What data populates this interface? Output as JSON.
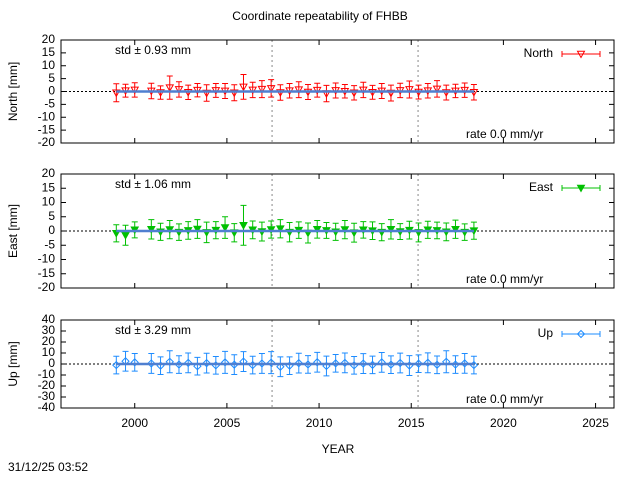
{
  "title": "Coordinate repeatability of FHBB",
  "timestamp": "31/12/25 03:52",
  "chart_data": [
    {
      "type": "errorbar",
      "ylabel": "North [mm]",
      "xlim": [
        1996,
        2026
      ],
      "xticks": [
        2000,
        2005,
        2010,
        2015,
        2020,
        2025
      ],
      "ylim": [
        -20,
        20
      ],
      "yticks": [
        -20,
        -15,
        -10,
        -5,
        0,
        5,
        10,
        15,
        20
      ],
      "vlines": [
        2007.45,
        2015.37
      ],
      "zero_line": true,
      "std_label": "std ± 0.93 mm",
      "rate_label": "rate  0.0 mm/yr",
      "x": [
        1999.0,
        1999.5,
        2000.0,
        2000.9,
        2001.4,
        2001.9,
        2002.4,
        2002.9,
        2003.4,
        2003.9,
        2004.4,
        2004.9,
        2005.4,
        2005.9,
        2006.4,
        2006.9,
        2007.4,
        2007.9,
        2008.4,
        2008.9,
        2009.4,
        2009.9,
        2010.4,
        2010.9,
        2011.4,
        2011.9,
        2012.4,
        2012.9,
        2013.4,
        2013.9,
        2014.4,
        2014.9,
        2015.4,
        2015.9,
        2016.4,
        2016.9,
        2017.4,
        2017.9,
        2018.4
      ],
      "series": [
        {
          "name": "North",
          "color": "#ff0000",
          "marker": "triangle-down-open",
          "values": [
            -0.5,
            0.3,
            0.6,
            0.2,
            -0.4,
            1.5,
            0.8,
            -0.3,
            0.5,
            -0.6,
            0.4,
            0.2,
            -0.5,
            1.8,
            0.6,
            0.9,
            1.2,
            -0.4,
            0.3,
            0.7,
            -0.2,
            0.5,
            -0.8,
            0.4,
            0.1,
            -0.5,
            0.6,
            -0.3,
            0.2,
            -0.6,
            0.4,
            0.8,
            -0.2,
            0.3,
            1.0,
            -0.4,
            0.2,
            0.5,
            -0.3
          ],
          "errors": [
            3.5,
            2.5,
            2.8,
            3.0,
            2.6,
            4.5,
            3.0,
            2.8,
            2.6,
            3.2,
            2.7,
            2.9,
            3.1,
            4.8,
            3.0,
            3.3,
            3.4,
            3.0,
            2.8,
            3.1,
            2.9,
            2.7,
            3.2,
            2.9,
            2.6,
            2.8,
            3.0,
            2.7,
            2.9,
            3.1,
            2.8,
            3.3,
            2.7,
            2.8,
            3.2,
            2.9,
            2.6,
            2.8,
            3.0
          ]
        }
      ]
    },
    {
      "type": "errorbar",
      "ylabel": "East [mm]",
      "xlim": [
        1996,
        2026
      ],
      "xticks": [
        2000,
        2005,
        2010,
        2015,
        2020,
        2025
      ],
      "ylim": [
        -20,
        20
      ],
      "yticks": [
        -20,
        -15,
        -10,
        -5,
        0,
        5,
        10,
        15,
        20
      ],
      "vlines": [
        2007.45,
        2015.37
      ],
      "zero_line": true,
      "std_label": "std ± 1.06 mm",
      "rate_label": "rate  0.0 mm/yr",
      "x": [
        1999.0,
        1999.5,
        2000.0,
        2000.9,
        2001.4,
        2001.9,
        2002.4,
        2002.9,
        2003.4,
        2003.9,
        2004.4,
        2004.9,
        2005.4,
        2005.9,
        2006.4,
        2006.9,
        2007.4,
        2007.9,
        2008.4,
        2008.9,
        2009.4,
        2009.9,
        2010.4,
        2010.9,
        2011.4,
        2011.9,
        2012.4,
        2012.9,
        2013.4,
        2013.9,
        2014.4,
        2014.9,
        2015.4,
        2015.9,
        2016.4,
        2016.9,
        2017.4,
        2017.9,
        2018.4
      ],
      "series": [
        {
          "name": "East",
          "color": "#00c000",
          "marker": "triangle-down-filled",
          "values": [
            -0.8,
            -1.5,
            0.4,
            0.6,
            -0.3,
            0.5,
            -0.4,
            0.2,
            0.7,
            -0.5,
            0.3,
            1.2,
            -0.6,
            2.0,
            0.4,
            -0.2,
            0.5,
            0.8,
            -0.4,
            0.3,
            -0.7,
            0.6,
            0.2,
            -0.3,
            0.5,
            -0.6,
            0.4,
            0.1,
            -0.4,
            0.6,
            -0.2,
            0.3,
            -0.5,
            0.4,
            0.2,
            -0.3,
            0.6,
            -0.4,
            0.1
          ],
          "errors": [
            3.0,
            3.5,
            2.8,
            3.4,
            3.0,
            3.2,
            2.9,
            3.1,
            3.3,
            3.6,
            3.0,
            3.8,
            3.2,
            7.0,
            3.1,
            3.3,
            3.0,
            3.2,
            3.4,
            2.9,
            3.5,
            3.1,
            2.8,
            3.0,
            3.2,
            3.3,
            2.9,
            3.1,
            3.0,
            3.4,
            2.8,
            3.1,
            3.3,
            3.0,
            2.9,
            3.1,
            3.2,
            2.9,
            3.0
          ]
        }
      ]
    },
    {
      "type": "errorbar",
      "ylabel": "Up [mm]",
      "xlabel": "YEAR",
      "xlim": [
        1996,
        2026
      ],
      "xticks": [
        2000,
        2005,
        2010,
        2015,
        2020,
        2025
      ],
      "ylim": [
        -40,
        40
      ],
      "yticks": [
        -40,
        -30,
        -20,
        -10,
        0,
        10,
        20,
        30,
        40
      ],
      "vlines": [
        2007.45,
        2015.37
      ],
      "zero_line": true,
      "std_label": "std ± 3.29 mm",
      "rate_label": "rate  0.0 mm/yr",
      "x": [
        1999.0,
        1999.5,
        2000.0,
        2000.9,
        2001.4,
        2001.9,
        2002.4,
        2002.9,
        2003.4,
        2003.9,
        2004.4,
        2004.9,
        2005.4,
        2005.9,
        2006.4,
        2006.9,
        2007.4,
        2007.9,
        2008.4,
        2008.9,
        2009.4,
        2009.9,
        2010.4,
        2010.9,
        2011.4,
        2011.9,
        2012.4,
        2012.9,
        2013.4,
        2013.9,
        2014.4,
        2014.9,
        2015.4,
        2015.9,
        2016.4,
        2016.9,
        2017.4,
        2017.9,
        2018.4
      ],
      "series": [
        {
          "name": "Up",
          "color": "#1e8cff",
          "marker": "diamond-open",
          "values": [
            -1.0,
            2.5,
            1.5,
            0.5,
            -1.5,
            2.0,
            -0.5,
            1.0,
            -2.0,
            0.8,
            -1.2,
            1.5,
            -0.6,
            2.2,
            -1.0,
            0.5,
            1.2,
            -2.5,
            -1.5,
            0.8,
            -0.4,
            1.6,
            -1.8,
            0.6,
            1.0,
            -1.2,
            0.4,
            -0.8,
            1.5,
            -0.6,
            0.9,
            -1.4,
            0.3,
            1.1,
            -0.7,
            2.0,
            -0.5,
            0.6,
            -1.0
          ],
          "errors": [
            8,
            9,
            8,
            9,
            8,
            10,
            8,
            9,
            8,
            9,
            8,
            10,
            9,
            9,
            8,
            9,
            10,
            9,
            8,
            9,
            8,
            9,
            9,
            8,
            9,
            8,
            9,
            8,
            9,
            8,
            9,
            9,
            8,
            9,
            8,
            10,
            8,
            9,
            8
          ]
        }
      ]
    }
  ]
}
